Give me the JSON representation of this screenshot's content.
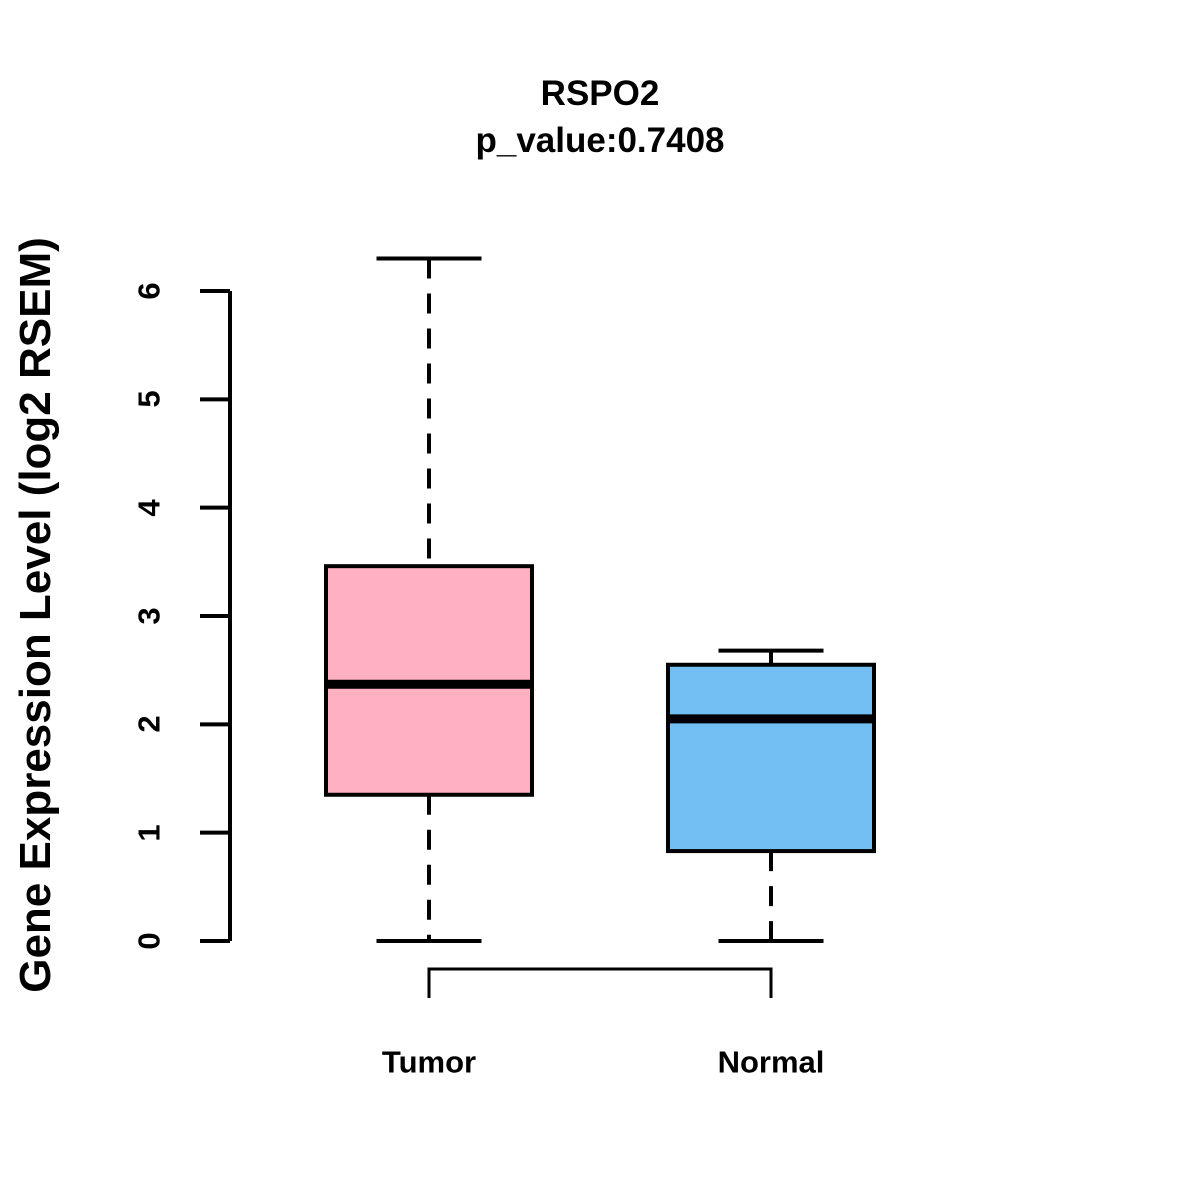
{
  "chart_data": {
    "type": "boxplot",
    "title": "RSPO2",
    "subtitle": "p_value:0.7408",
    "ylabel": "Gene Expression Level (log2 RSEM)",
    "xlabel": "",
    "categories": [
      "Tumor",
      "Normal"
    ],
    "series": [
      {
        "name": "Tumor",
        "min": 0,
        "q1": 1.35,
        "median": 2.37,
        "q3": 3.46,
        "max": 6.3,
        "fill_color": "#FFB1C1"
      },
      {
        "name": "Normal",
        "min": 0,
        "q1": 0.83,
        "median": 2.05,
        "q3": 2.55,
        "max": 2.68,
        "fill_color": "#73BFF3"
      }
    ],
    "ylim": [
      0,
      6
    ],
    "yticks": [
      0,
      1,
      2,
      3,
      4,
      5,
      6
    ],
    "grid": false,
    "legend": "none",
    "line_color": "#000000",
    "background_color": "#FFFFFF",
    "comparison_bracket": {
      "connects": [
        "Tumor",
        "Normal"
      ],
      "label": ""
    }
  }
}
